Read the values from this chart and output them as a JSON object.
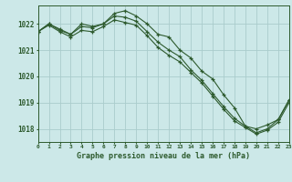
{
  "title": "Graphe pression niveau de la mer (hPa)",
  "background_color": "#cce8e8",
  "grid_color": "#aacccc",
  "line_color": "#2d5a2d",
  "hours": [
    0,
    1,
    2,
    3,
    4,
    5,
    6,
    7,
    8,
    9,
    10,
    11,
    12,
    13,
    14,
    15,
    16,
    17,
    18,
    19,
    20,
    21,
    22,
    23
  ],
  "series1": [
    1021.7,
    1022.0,
    1021.8,
    1021.6,
    1022.0,
    1021.9,
    1022.0,
    1022.4,
    1022.5,
    1022.3,
    1022.0,
    1021.6,
    1021.5,
    1021.0,
    1020.7,
    1020.2,
    1019.9,
    1019.3,
    1018.8,
    1018.1,
    1017.85,
    1018.0,
    1018.35,
    1019.1
  ],
  "series2": [
    1021.7,
    1022.0,
    1021.75,
    1021.6,
    1021.9,
    1021.85,
    1022.0,
    1022.3,
    1022.25,
    1022.1,
    1021.7,
    1021.3,
    1021.0,
    1020.75,
    1020.25,
    1019.85,
    1019.35,
    1018.85,
    1018.4,
    1018.1,
    1018.0,
    1018.15,
    1018.35,
    1019.1
  ],
  "series3": [
    1021.7,
    1021.95,
    1021.7,
    1021.5,
    1021.75,
    1021.7,
    1021.9,
    1022.15,
    1022.05,
    1021.95,
    1021.55,
    1021.1,
    1020.8,
    1020.55,
    1020.15,
    1019.75,
    1019.25,
    1018.75,
    1018.3,
    1018.05,
    1017.8,
    1017.95,
    1018.25,
    1019.0
  ],
  "ylim": [
    1017.5,
    1022.7
  ],
  "yticks": [
    1018,
    1019,
    1020,
    1021,
    1022
  ],
  "xlim": [
    0,
    23
  ],
  "xticks": [
    0,
    1,
    2,
    3,
    4,
    5,
    6,
    7,
    8,
    9,
    10,
    11,
    12,
    13,
    14,
    15,
    16,
    17,
    18,
    19,
    20,
    21,
    22,
    23
  ]
}
